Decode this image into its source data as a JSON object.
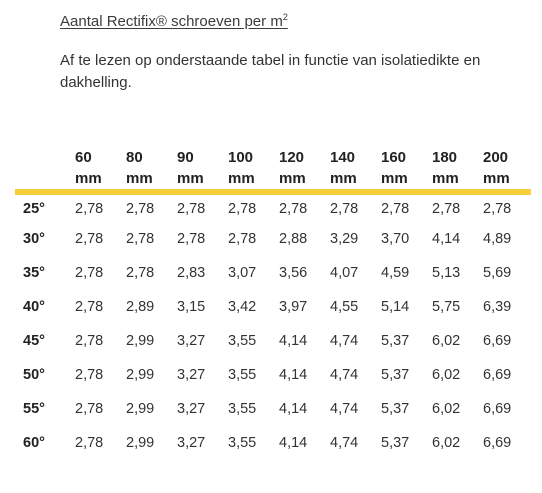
{
  "heading": {
    "text": "Aantal Rectifix® schroeven per m",
    "sup": "2"
  },
  "intro": "Af te lezen op onderstaande tabel in functie van isolatiedikte en dakhelling.",
  "table": {
    "columns": [
      {
        "value": "60",
        "unit": "mm"
      },
      {
        "value": "80",
        "unit": "mm"
      },
      {
        "value": "90",
        "unit": "mm"
      },
      {
        "value": "100",
        "unit": "mm"
      },
      {
        "value": "120",
        "unit": "mm"
      },
      {
        "value": "140",
        "unit": "mm"
      },
      {
        "value": "160",
        "unit": "mm"
      },
      {
        "value": "180",
        "unit": "mm"
      },
      {
        "value": "200",
        "unit": "mm"
      }
    ],
    "rows": [
      {
        "slope": "25°",
        "values": [
          "2,78",
          "2,78",
          "2,78",
          "2,78",
          "2,78",
          "2,78",
          "2,78",
          "2,78",
          "2,78"
        ]
      },
      {
        "slope": "30°",
        "values": [
          "2,78",
          "2,78",
          "2,78",
          "2,78",
          "2,88",
          "3,29",
          "3,70",
          "4,14",
          "4,89"
        ]
      },
      {
        "slope": "35°",
        "values": [
          "2,78",
          "2,78",
          "2,83",
          "3,07",
          "3,56",
          "4,07",
          "4,59",
          "5,13",
          "5,69"
        ]
      },
      {
        "slope": "40°",
        "values": [
          "2,78",
          "2,89",
          "3,15",
          "3,42",
          "3,97",
          "4,55",
          "5,14",
          "5,75",
          "6,39"
        ]
      },
      {
        "slope": "45°",
        "values": [
          "2,78",
          "2,99",
          "3,27",
          "3,55",
          "4,14",
          "4,74",
          "5,37",
          "6,02",
          "6,69"
        ]
      },
      {
        "slope": "50°",
        "values": [
          "2,78",
          "2,99",
          "3,27",
          "3,55",
          "4,14",
          "4,74",
          "5,37",
          "6,02",
          "6,69"
        ]
      },
      {
        "slope": "55°",
        "values": [
          "2,78",
          "2,99",
          "3,27",
          "3,55",
          "4,14",
          "4,74",
          "5,37",
          "6,02",
          "6,69"
        ]
      },
      {
        "slope": "60°",
        "values": [
          "2,78",
          "2,99",
          "3,27",
          "3,55",
          "4,14",
          "4,74",
          "5,37",
          "6,02",
          "6,69"
        ]
      }
    ]
  },
  "colors": {
    "accent": "#f6cd3b",
    "text": "#333333"
  }
}
